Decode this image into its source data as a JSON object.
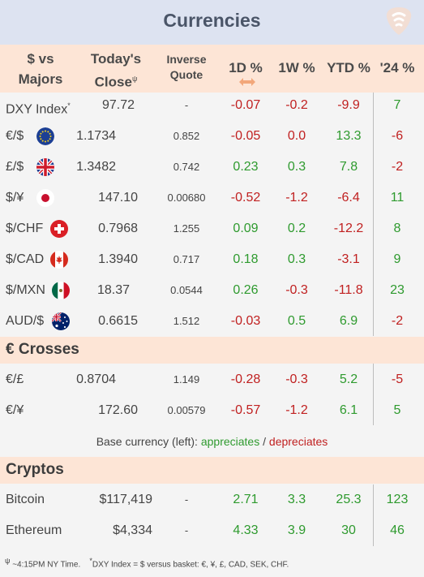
{
  "title": "Currencies",
  "header": {
    "col_pair_line1": "$ vs",
    "col_pair_line2": "Majors",
    "col_close_line1": "Today's",
    "col_close_line2": "Close",
    "col_close_mark": "ψ",
    "col_inverse_line1": "Inverse",
    "col_inverse_line2": "Quote",
    "col_1d": "1D %",
    "col_1w": "1W %",
    "col_ytd": "YTD %",
    "col_24": "'24 %"
  },
  "majors": [
    {
      "name": "DXY Index",
      "mark": "*",
      "flag": "",
      "close": "97.72",
      "inverse": "-",
      "d1": "-0.07",
      "w1": "-0.2",
      "ytd": "-9.9",
      "y24": "7"
    },
    {
      "name": "€/$",
      "flag": "eu-flag-icon",
      "close": "1.1734",
      "inverse": "0.852",
      "d1": "-0.05",
      "w1": "0.0",
      "ytd": "13.3",
      "y24": "-6"
    },
    {
      "name": "£/$",
      "flag": "uk-flag-icon",
      "close": "1.3482",
      "inverse": "0.742",
      "d1": "0.23",
      "w1": "0.3",
      "ytd": "7.8",
      "y24": "-2"
    },
    {
      "name": "$/¥",
      "flag": "japan-flag-icon",
      "close": "147.10",
      "inverse": "0.00680",
      "d1": "-0.52",
      "w1": "-1.2",
      "ytd": "-6.4",
      "y24": "11"
    },
    {
      "name": "$/CHF",
      "flag": "swiss-flag-icon",
      "close": "0.7968",
      "inverse": "1.255",
      "d1": "0.09",
      "w1": "0.2",
      "ytd": "-12.2",
      "y24": "8"
    },
    {
      "name": "$/CAD",
      "flag": "canada-flag-icon",
      "close": "1.3940",
      "inverse": "0.717",
      "d1": "0.18",
      "w1": "0.3",
      "ytd": "-3.1",
      "y24": "9"
    },
    {
      "name": "$/MXN",
      "flag": "mexico-flag-icon",
      "close": "18.37",
      "inverse": "0.0544",
      "d1": "0.26",
      "w1": "-0.3",
      "ytd": "-11.8",
      "y24": "23"
    },
    {
      "name": "AUD/$",
      "flag": "australia-flag-icon",
      "close": "0.6615",
      "inverse": "1.512",
      "d1": "-0.03",
      "w1": "0.5",
      "ytd": "6.9",
      "y24": "-2"
    }
  ],
  "crosses_section": "€ Crosses",
  "crosses": [
    {
      "name": "€/£",
      "close": "0.8704",
      "inverse": "1.149",
      "d1": "-0.28",
      "w1": "-0.3",
      "ytd": "5.2",
      "y24": "-5"
    },
    {
      "name": "€/¥",
      "close": "172.60",
      "inverse": "0.00579",
      "d1": "-0.57",
      "w1": "-1.2",
      "ytd": "6.1",
      "y24": "5"
    }
  ],
  "legend": {
    "prefix": "Base currency (left): ",
    "appreciates": "appreciates",
    "separator": " / ",
    "depreciates": "depreciates"
  },
  "cryptos_section": "Cryptos",
  "cryptos": [
    {
      "name": "Bitcoin",
      "close": "$117,419",
      "inverse": "-",
      "d1": "2.71",
      "w1": "3.3",
      "ytd": "25.3",
      "y24": "123"
    },
    {
      "name": "Ethereum",
      "close": "$4,334",
      "inverse": "-",
      "d1": "4.33",
      "w1": "3.9",
      "ytd": "30",
      "y24": "46"
    }
  ],
  "footnote": {
    "psi_mark": "ψ",
    "psi_text": " ~4:15PM NY Time.",
    "star_mark": "*",
    "star_text": "DXY Index = $ versus basket: €, ¥, £, CAD, SEK, CHF."
  },
  "colors": {
    "positive": "#2e9a2e",
    "negative": "#c02020",
    "title_bg": "#dde3f1",
    "header_bg": "#fde5d6"
  }
}
